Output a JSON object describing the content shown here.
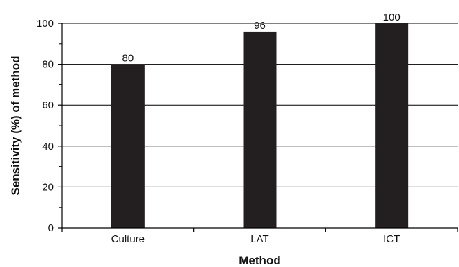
{
  "chart_data": {
    "type": "bar",
    "title": "",
    "xlabel": "Method",
    "ylabel": "Sensitivity (%) of method",
    "categories": [
      "Culture",
      "LAT",
      "ICT"
    ],
    "values": [
      80,
      96,
      100
    ],
    "data_labels": [
      "80",
      "96",
      "100"
    ],
    "ylim": [
      0,
      100
    ],
    "yticks": [
      0,
      20,
      40,
      60,
      80,
      100
    ],
    "ytick_labels": [
      "0",
      "20",
      "40",
      "60",
      "80",
      "100"
    ],
    "grid": "horizontal",
    "legend": "none",
    "bar_color": "#231f20",
    "grid_color": "#000000"
  }
}
